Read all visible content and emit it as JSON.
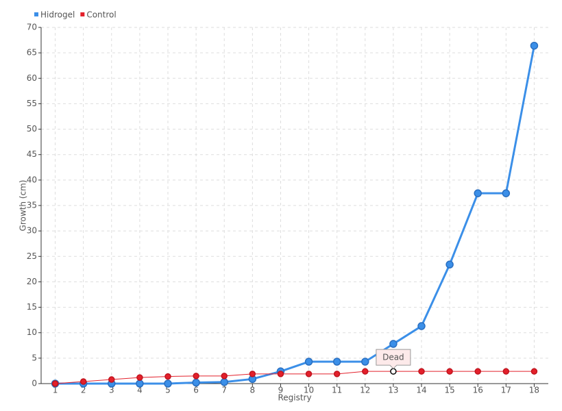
{
  "chart_data": {
    "type": "line",
    "x": [
      1,
      2,
      3,
      4,
      5,
      6,
      7,
      8,
      9,
      10,
      11,
      12,
      13,
      14,
      15,
      16,
      17,
      18
    ],
    "xlim": [
      0.5,
      18.5
    ],
    "xticks": [
      1,
      2,
      3,
      4,
      5,
      6,
      7,
      8,
      9,
      10,
      11,
      12,
      13,
      14,
      15,
      16,
      17,
      18
    ],
    "ylim": [
      0,
      70
    ],
    "yticks": [
      0,
      5,
      10,
      15,
      20,
      25,
      30,
      35,
      40,
      45,
      50,
      55,
      60,
      65,
      70
    ],
    "grid": true,
    "y_label": "Growth (cm)",
    "x_label": "Registry",
    "legend": "top-left",
    "series": [
      {
        "name": "Hidrogel",
        "color": "#3b8fe8",
        "values": [
          0,
          0,
          0,
          0,
          0,
          0.2,
          0.3,
          0.9,
          2.4,
          4.3,
          4.3,
          4.3,
          7.8,
          11.3,
          23.4,
          37.4,
          37.4,
          66.4
        ]
      },
      {
        "name": "Control",
        "color": "#e3202b",
        "values": [
          0,
          0.4,
          0.8,
          1.2,
          1.4,
          1.5,
          1.5,
          1.9,
          1.9,
          1.9,
          1.9,
          2.4,
          2.4,
          2.4,
          2.4,
          2.4,
          2.4,
          2.4
        ]
      }
    ],
    "annotations": [
      {
        "text": "Dead",
        "x": 13,
        "y": 2.4
      }
    ]
  }
}
